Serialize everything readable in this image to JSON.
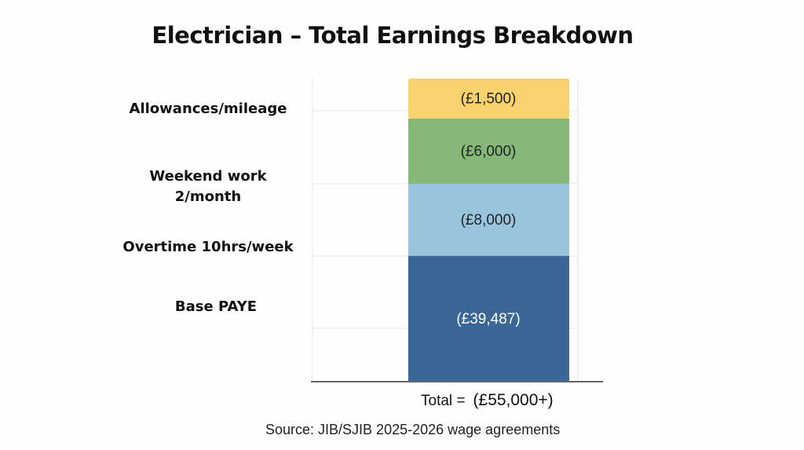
{
  "chart_data": {
    "type": "bar",
    "stacked": true,
    "title": "Electrician – Total Earnings Breakdown",
    "categories": [
      "Base PAYE",
      "Overtime 10hrs/week",
      "Weekend work 2/month",
      "Allowances/mileage"
    ],
    "values": [
      39487,
      8000,
      6000,
      1500
    ],
    "data_labels": [
      "(£39,487)",
      "(£8,000)",
      "(£6,000)",
      "(£1,500)"
    ],
    "colors": [
      "#3a6796",
      "#9ac4de",
      "#84b778",
      "#f8d26f"
    ],
    "total_label": "Total =",
    "total_value": "(£55,000+)",
    "source": "Source: JIB/SJIB 2025-2026 wage agreements",
    "grid": true
  }
}
